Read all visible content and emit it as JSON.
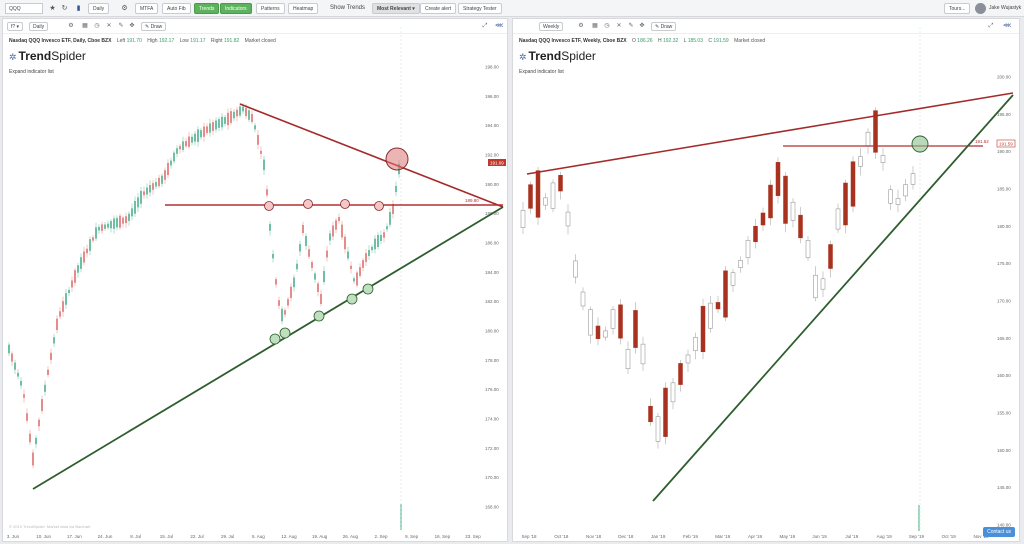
{
  "topbar": {
    "symbol": "QQQ",
    "timeframe": "Daily",
    "buttons": [
      "MTFA",
      "Auto Fib",
      "Trends",
      "Indicators",
      "Patterns",
      "Heatmap"
    ],
    "show_trends": "Show Trends",
    "most_relevant": "Most Relevant ▾",
    "create_alert": "Create alert",
    "strategy_tester": "Strategy Tester",
    "tours": "Tours...",
    "user": "Jake Wujastyk"
  },
  "left_panel": {
    "interval": "Daily",
    "draw": "Draw",
    "title": "Nasdaq QQQ Invesco ETF, Daily, Cboe BZX",
    "left_label": "Left",
    "left": "191.70",
    "high_label": "High",
    "high": "192.17",
    "low_label": "Low",
    "low": "191.17",
    "right_label": "Right",
    "right": "191.82",
    "status": "Market closed",
    "logo_a": "Trend",
    "logo_b": "Spider",
    "expand": "Expand indicator list",
    "watermark": "© 2019 TrendSpider. Market data via Barchart",
    "chart_data": {
      "type": "candlestick",
      "y_ticks": [
        "198.00",
        "196.00",
        "194.00",
        "192.00",
        "190.00",
        "188.00",
        "186.00",
        "184.00",
        "182.00",
        "180.00",
        "178.00",
        "176.00",
        "174.00",
        "172.00",
        "170.00",
        "168.00"
      ],
      "x_ticks": [
        "3. Jun",
        "10. Jun",
        "17. Jun",
        "24. Jun",
        "8. Jul",
        "15. Jul",
        "22. Jul",
        "29. Jul",
        "5. Aug",
        "12. Aug",
        "19. Aug",
        "26. Aug",
        "2. Sep",
        "9. Sep",
        "16. Sep",
        "23. Sep"
      ],
      "price_label": "191.09",
      "resistance_label": "189.80"
    }
  },
  "right_panel": {
    "interval": "Weekly",
    "draw": "Draw",
    "title": "Nasdaq QQQ Invesco ETF, Weekly, Cboe BZX",
    "o_label": "O",
    "o": "186.26",
    "h_label": "H",
    "h": "192.32",
    "l_label": "L",
    "l": "185.03",
    "c_label": "C",
    "c": "191.59",
    "status": "Market closed",
    "logo_a": "Trend",
    "logo_b": "Spider",
    "expand": "Expand indicator list",
    "contact": "Contact us",
    "chart_data": {
      "type": "candlestick",
      "y_ticks": [
        "200.00",
        "195.00",
        "190.00",
        "185.00",
        "180.00",
        "175.00",
        "170.00",
        "165.00",
        "160.00",
        "155.00",
        "150.00",
        "145.00",
        "140.00"
      ],
      "x_ticks": [
        "Sep '18",
        "Oct '18",
        "Nov '18",
        "Dec '18",
        "Jan '19",
        "Feb '19",
        "Mar '19",
        "Apr '19",
        "May '19",
        "Jun '19",
        "Jul '19",
        "Aug '19",
        "Sep '19",
        "Oct '19",
        "Nov '19"
      ],
      "price_label": "191.59",
      "resistance_label": "191.52"
    }
  }
}
